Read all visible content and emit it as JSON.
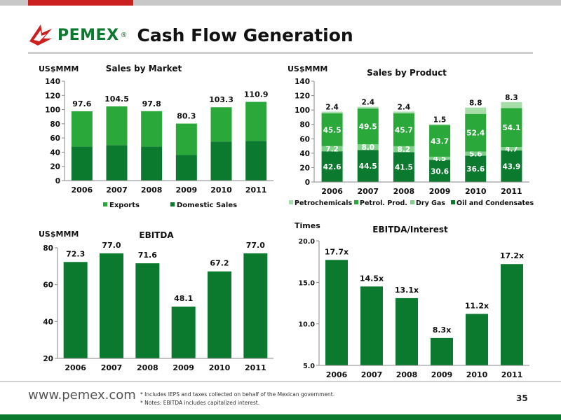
{
  "header": {
    "logo_text": "PEMEX",
    "logo_reg": "®",
    "title": "Cash Flow Generation"
  },
  "footer": {
    "url": "www.pemex.com",
    "note1": "* Includes IEPS and taxes collected on behalf of the Mexican government.",
    "note2": "* Notes: EBITDA includes capitalized interest.",
    "page_number": "35"
  },
  "colors": {
    "dark_green": "#0b7a2e",
    "mid_green": "#2aa83a",
    "light_green": "#7fd18a",
    "pale_green": "#a6dda8",
    "red": "#cc1f1f"
  },
  "chart_data": [
    {
      "id": "sales-by-market",
      "type": "bar",
      "title": "Sales by Market",
      "unit_label": "US$MMM",
      "categories": [
        "2006",
        "2007",
        "2008",
        "2009",
        "2010",
        "2011"
      ],
      "series": [
        {
          "name": "Domestic Sales",
          "values": [
            48,
            50,
            48,
            36,
            55,
            56
          ]
        },
        {
          "name": "Exports",
          "values": [
            49.6,
            54.5,
            49.8,
            44.3,
            48.3,
            54.9
          ]
        }
      ],
      "totals": [
        "97.6",
        "104.5",
        "97.8",
        "80.3",
        "103.3",
        "110.9"
      ],
      "ylim": [
        0,
        140
      ],
      "yticks": [
        0,
        20,
        40,
        60,
        80,
        100,
        120,
        140
      ],
      "legend": [
        "Exports",
        "Domestic Sales"
      ]
    },
    {
      "id": "sales-by-product",
      "type": "bar",
      "title": "Sales by Product",
      "unit_label": "US$MMM",
      "categories": [
        "2006",
        "2007",
        "2008",
        "2009",
        "2010",
        "2011"
      ],
      "series": [
        {
          "name": "Oil and Condensates",
          "values": [
            42.6,
            44.5,
            41.5,
            30.6,
            36.6,
            43.9
          ],
          "labels": [
            "42.6",
            "44.5",
            "41.5",
            "30.6",
            "36.6",
            "43.9"
          ]
        },
        {
          "name": "Dry Gas",
          "values": [
            7.2,
            8.0,
            8.2,
            4.5,
            5.6,
            4.7
          ],
          "labels": [
            "7.2",
            "8.0",
            "8.2",
            "4.5",
            "5.6",
            "4.7"
          ]
        },
        {
          "name": "Petrol. Prod.",
          "values": [
            45.5,
            49.5,
            45.7,
            43.7,
            52.4,
            54.1
          ],
          "labels": [
            "45.5",
            "49.5",
            "45.7",
            "43.7",
            "52.4",
            "54.1"
          ]
        },
        {
          "name": "Petrochemicals",
          "values": [
            2.4,
            2.4,
            2.4,
            1.5,
            8.8,
            8.3
          ],
          "labels": [
            "2.4",
            "2.4",
            "2.4",
            "1.5",
            "8.8",
            "8.3"
          ]
        }
      ],
      "ylim": [
        0,
        140
      ],
      "yticks": [
        0,
        20,
        40,
        60,
        80,
        100,
        120,
        140
      ],
      "legend": [
        "Petrochemicals",
        "Petrol. Prod.",
        "Dry Gas",
        "Oil and Condensates"
      ]
    },
    {
      "id": "ebitda",
      "type": "bar",
      "title": "EBITDA",
      "unit_label": "US$MMM",
      "categories": [
        "2006",
        "2007",
        "2008",
        "2009",
        "2010",
        "2011"
      ],
      "values": [
        72.3,
        77.0,
        71.6,
        48.1,
        67.2,
        77.0
      ],
      "labels": [
        "72.3",
        "77.0",
        "71.6",
        "48.1",
        "67.2",
        "77.0"
      ],
      "ylim": [
        20,
        80
      ],
      "yticks": [
        20,
        40,
        60,
        80
      ]
    },
    {
      "id": "ebitda-interest",
      "type": "bar",
      "title": "EBITDA/Interest",
      "unit_label": "Times",
      "categories": [
        "2006",
        "2007",
        "2008",
        "2009",
        "2010",
        "2011"
      ],
      "values": [
        17.7,
        14.5,
        13.1,
        8.3,
        11.2,
        17.2
      ],
      "labels": [
        "17.7x",
        "14.5x",
        "13.1x",
        "8.3x",
        "11.2x",
        "17.2x"
      ],
      "ylim": [
        5,
        20
      ],
      "yticks": [
        "5.0",
        "10.0",
        "15.0",
        "20.0"
      ]
    }
  ]
}
